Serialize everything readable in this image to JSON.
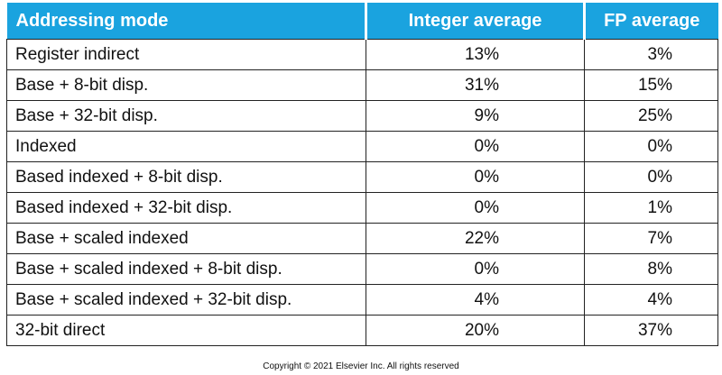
{
  "table": {
    "headers": {
      "mode": "Addressing mode",
      "integer": "Integer average",
      "fp": "FP average"
    },
    "rows": [
      {
        "mode": "Register indirect",
        "integer": "13%",
        "fp": "3%"
      },
      {
        "mode": "Base + 8-bit disp.",
        "integer": "31%",
        "fp": "15%"
      },
      {
        "mode": "Base + 32-bit disp.",
        "integer": "9%",
        "fp": "25%"
      },
      {
        "mode": "Indexed",
        "integer": "0%",
        "fp": "0%"
      },
      {
        "mode": "Based indexed + 8-bit disp.",
        "integer": "0%",
        "fp": "0%"
      },
      {
        "mode": "Based indexed + 32-bit disp.",
        "integer": "0%",
        "fp": "1%"
      },
      {
        "mode": "Base + scaled indexed",
        "integer": "22%",
        "fp": "7%"
      },
      {
        "mode": "Base + scaled indexed + 8-bit disp.",
        "integer": "0%",
        "fp": "8%"
      },
      {
        "mode": "Base + scaled indexed + 32-bit disp.",
        "integer": "4%",
        "fp": "4%"
      },
      {
        "mode": "32-bit direct",
        "integer": "20%",
        "fp": "37%"
      }
    ]
  },
  "footer": {
    "copyright": "Copyright © 2021 Elsevier Inc. All rights reserved"
  },
  "colors": {
    "header_background": "#1aa3df",
    "header_text": "#ffffff",
    "border": "#222222"
  }
}
